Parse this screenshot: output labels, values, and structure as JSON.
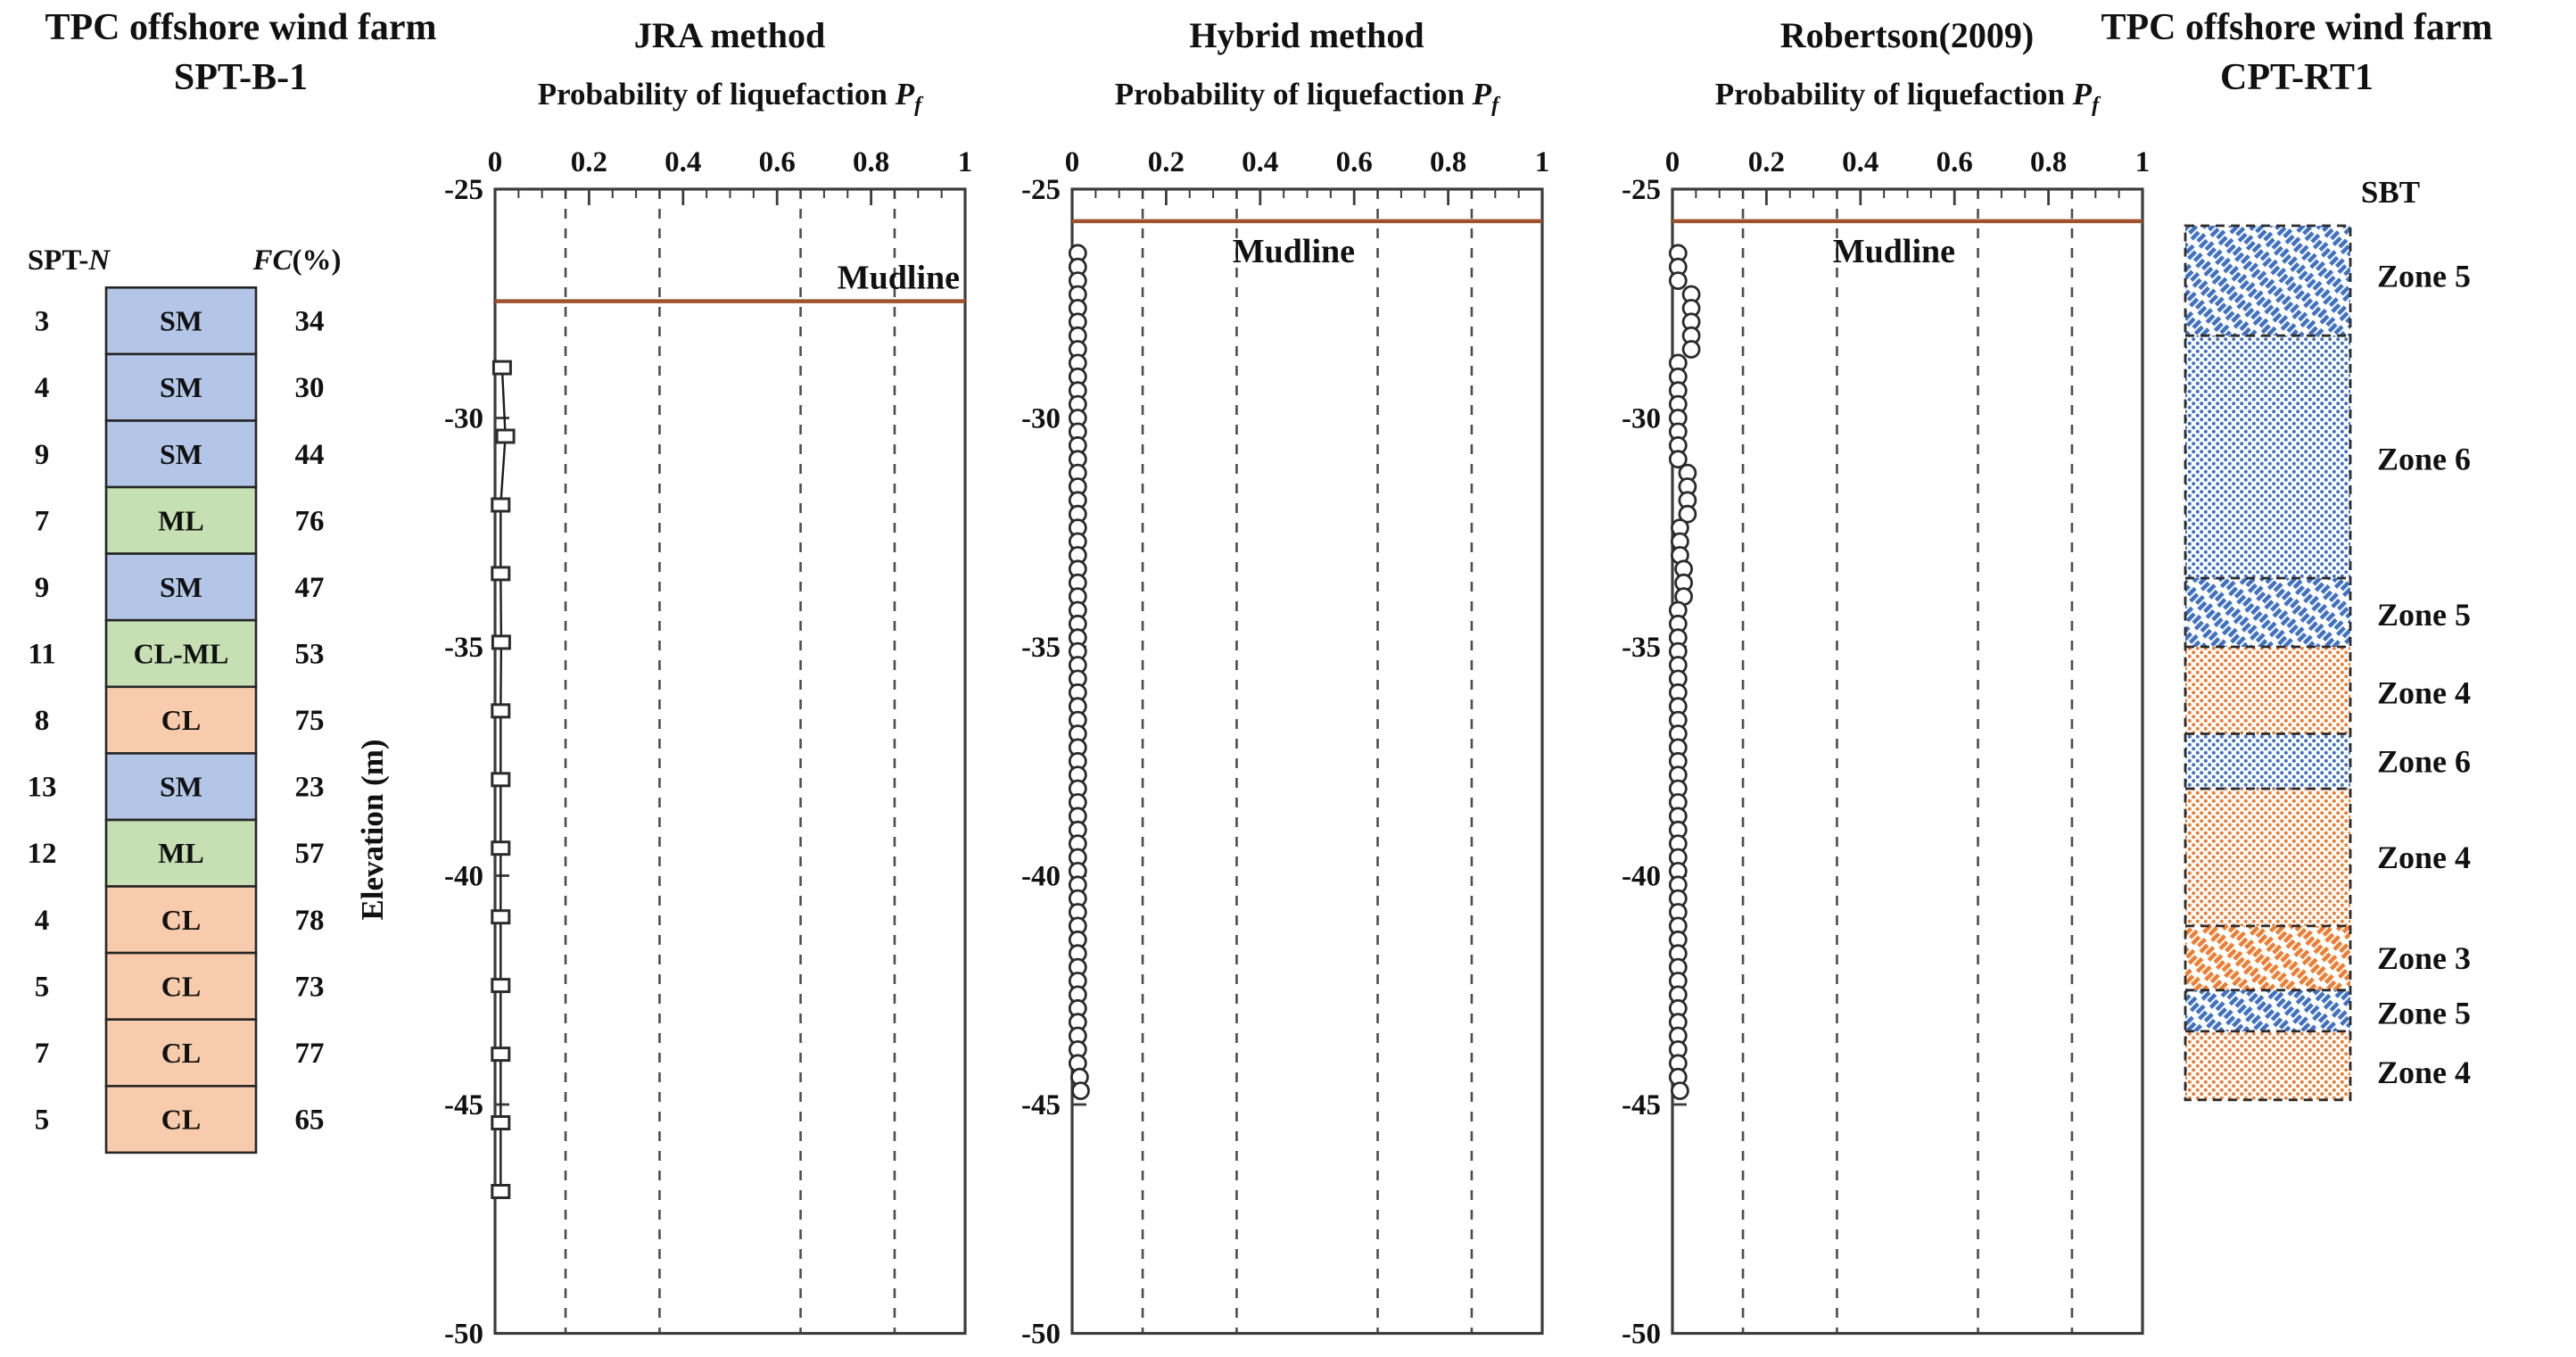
{
  "header": {
    "spt_panel_title_line1": "TPC offshore wind farm",
    "spt_panel_title_line2": "SPT-B-1",
    "cpt_panel_title_line1": "TPC offshore wind farm",
    "cpt_panel_title_line2": "CPT-RT1",
    "sbt_header": "SBT"
  },
  "soil_headers": {
    "spt_prefix": "SPT-",
    "spt_italic": "N",
    "fc_italic": "FC",
    "fc_suffix": "(%)"
  },
  "colors": {
    "sm_fill": "#b4c6e7",
    "ml_fill": "#c6e0b4",
    "cl_fill": "#f8cbad",
    "cell_border": "#262626",
    "mudline": "#a0522d",
    "frame": "#3c3c3c",
    "gridline": "#4d4d4d",
    "marker_stroke": "#2b2b2b",
    "zone_blue": "#4070c0",
    "zone_orange": "#ed7d31",
    "zone_border": "#2b2b2b"
  },
  "chart_data": {
    "type": "multi-panel",
    "description": "Probability of liquefaction vs elevation profiles with SPT soil log and CPT SBT log",
    "elevation_axis": {
      "label": "Elevation (m)",
      "range": [
        -50,
        -25
      ]
    },
    "panels": [
      {
        "id": "jra",
        "panel_type": "line-scatter",
        "title": "JRA method",
        "xlabel_text": "Probability of liquefaction",
        "xlabel_symbol": "P",
        "xlabel_subscript": "f",
        "xlim": [
          0,
          1
        ],
        "ylim": [
          -50,
          -25
        ],
        "xticks": [
          0,
          0.2,
          0.4,
          0.6,
          0.8,
          1
        ],
        "xtick_labels": [
          "0",
          "0.2",
          "0.4",
          "0.6",
          "0.8",
          "1"
        ],
        "yticks": [
          -25,
          -30,
          -35,
          -40,
          -45,
          -50
        ],
        "ytick_labels": [
          "-25",
          "-30",
          "-35",
          "-40",
          "-45",
          "-50"
        ],
        "ylabel": "Elevation (m)",
        "gridlines_pf": [
          0.15,
          0.35,
          0.65,
          0.85
        ],
        "mudline": {
          "elevation": -27.45,
          "label": "Mudline",
          "label_position": "above"
        },
        "marker": "square",
        "points": [
          [
            0.015,
            -28.9
          ],
          [
            0.022,
            -30.4
          ],
          [
            0.012,
            -31.9
          ],
          [
            0.012,
            -33.4
          ],
          [
            0.013,
            -34.9
          ],
          [
            0.012,
            -36.4
          ],
          [
            0.012,
            -37.9
          ],
          [
            0.012,
            -39.4
          ],
          [
            0.012,
            -40.9
          ],
          [
            0.012,
            -42.4
          ],
          [
            0.012,
            -43.9
          ],
          [
            0.012,
            -45.4
          ],
          [
            0.012,
            -46.9
          ]
        ]
      },
      {
        "id": "hybrid",
        "panel_type": "scatter",
        "title": "Hybrid method",
        "xlabel_text": "Probability of liquefaction",
        "xlabel_symbol": "P",
        "xlabel_subscript": "f",
        "xlim": [
          0,
          1
        ],
        "ylim": [
          -50,
          -25
        ],
        "xticks": [
          0,
          0.2,
          0.4,
          0.6,
          0.8,
          1
        ],
        "xtick_labels": [
          "0",
          "0.2",
          "0.4",
          "0.6",
          "0.8",
          "1"
        ],
        "yticks": [
          -25,
          -30,
          -35,
          -40,
          -45,
          -50
        ],
        "ytick_labels": [
          "-25",
          "-30",
          "-35",
          "-40",
          "-45",
          "-50"
        ],
        "gridlines_pf": [
          0.15,
          0.35,
          0.65,
          0.85
        ],
        "mudline": {
          "elevation": -25.7,
          "label": "Mudline",
          "label_position": "below"
        },
        "marker": "circle",
        "points": [
          [
            0.012,
            -26.4
          ],
          [
            0.012,
            -26.7
          ],
          [
            0.012,
            -27.0
          ],
          [
            0.012,
            -27.3
          ],
          [
            0.012,
            -27.6
          ],
          [
            0.012,
            -27.9
          ],
          [
            0.012,
            -28.2
          ],
          [
            0.012,
            -28.5
          ],
          [
            0.012,
            -28.8
          ],
          [
            0.012,
            -29.1
          ],
          [
            0.012,
            -29.4
          ],
          [
            0.012,
            -29.7
          ],
          [
            0.012,
            -30.0
          ],
          [
            0.012,
            -30.3
          ],
          [
            0.012,
            -30.6
          ],
          [
            0.012,
            -30.9
          ],
          [
            0.012,
            -31.2
          ],
          [
            0.012,
            -31.5
          ],
          [
            0.012,
            -31.8
          ],
          [
            0.012,
            -32.1
          ],
          [
            0.012,
            -32.4
          ],
          [
            0.012,
            -32.7
          ],
          [
            0.012,
            -33.0
          ],
          [
            0.012,
            -33.3
          ],
          [
            0.012,
            -33.6
          ],
          [
            0.012,
            -33.9
          ],
          [
            0.012,
            -34.2
          ],
          [
            0.012,
            -34.5
          ],
          [
            0.012,
            -34.8
          ],
          [
            0.012,
            -35.1
          ],
          [
            0.012,
            -35.4
          ],
          [
            0.012,
            -35.7
          ],
          [
            0.012,
            -36.0
          ],
          [
            0.012,
            -36.3
          ],
          [
            0.012,
            -36.6
          ],
          [
            0.012,
            -36.9
          ],
          [
            0.012,
            -37.2
          ],
          [
            0.012,
            -37.5
          ],
          [
            0.012,
            -37.8
          ],
          [
            0.012,
            -38.1
          ],
          [
            0.012,
            -38.4
          ],
          [
            0.012,
            -38.7
          ],
          [
            0.012,
            -39.0
          ],
          [
            0.012,
            -39.3
          ],
          [
            0.012,
            -39.6
          ],
          [
            0.012,
            -39.9
          ],
          [
            0.012,
            -40.2
          ],
          [
            0.012,
            -40.5
          ],
          [
            0.012,
            -40.8
          ],
          [
            0.012,
            -41.1
          ],
          [
            0.012,
            -41.4
          ],
          [
            0.012,
            -41.7
          ],
          [
            0.012,
            -42.0
          ],
          [
            0.012,
            -42.3
          ],
          [
            0.012,
            -42.6
          ],
          [
            0.012,
            -42.9
          ],
          [
            0.012,
            -43.2
          ],
          [
            0.012,
            -43.5
          ],
          [
            0.012,
            -43.8
          ],
          [
            0.012,
            -44.1
          ],
          [
            0.016,
            -44.4
          ],
          [
            0.018,
            -44.7
          ]
        ]
      },
      {
        "id": "robertson",
        "panel_type": "scatter",
        "title": "Robertson(2009)",
        "xlabel_text": "Probability of liquefaction",
        "xlabel_symbol": "P",
        "xlabel_subscript": "f",
        "xlim": [
          0,
          1
        ],
        "ylim": [
          -50,
          -25
        ],
        "xticks": [
          0,
          0.2,
          0.4,
          0.6,
          0.8,
          1
        ],
        "xtick_labels": [
          "0",
          "0.2",
          "0.4",
          "0.6",
          "0.8",
          "1"
        ],
        "yticks": [
          -25,
          -30,
          -35,
          -40,
          -45,
          -50
        ],
        "ytick_labels": [
          "-25",
          "-30",
          "-35",
          "-40",
          "-45",
          "-50"
        ],
        "gridlines_pf": [
          0.15,
          0.35,
          0.65,
          0.85
        ],
        "mudline": {
          "elevation": -25.7,
          "label": "Mudline",
          "label_position": "below"
        },
        "marker": "circle",
        "points": [
          [
            0.012,
            -26.4
          ],
          [
            0.012,
            -26.7
          ],
          [
            0.012,
            -27.0
          ],
          [
            0.04,
            -27.3
          ],
          [
            0.04,
            -27.6
          ],
          [
            0.04,
            -27.9
          ],
          [
            0.04,
            -28.2
          ],
          [
            0.04,
            -28.5
          ],
          [
            0.012,
            -28.8
          ],
          [
            0.012,
            -29.1
          ],
          [
            0.012,
            -29.4
          ],
          [
            0.012,
            -29.7
          ],
          [
            0.012,
            -30.0
          ],
          [
            0.012,
            -30.3
          ],
          [
            0.012,
            -30.6
          ],
          [
            0.012,
            -30.9
          ],
          [
            0.032,
            -31.2
          ],
          [
            0.032,
            -31.5
          ],
          [
            0.032,
            -31.8
          ],
          [
            0.032,
            -32.1
          ],
          [
            0.016,
            -32.4
          ],
          [
            0.016,
            -32.7
          ],
          [
            0.016,
            -33.0
          ],
          [
            0.024,
            -33.3
          ],
          [
            0.024,
            -33.6
          ],
          [
            0.024,
            -33.9
          ],
          [
            0.012,
            -34.2
          ],
          [
            0.012,
            -34.5
          ],
          [
            0.012,
            -34.8
          ],
          [
            0.012,
            -35.1
          ],
          [
            0.012,
            -35.4
          ],
          [
            0.012,
            -35.7
          ],
          [
            0.012,
            -36.0
          ],
          [
            0.012,
            -36.3
          ],
          [
            0.012,
            -36.6
          ],
          [
            0.012,
            -36.9
          ],
          [
            0.012,
            -37.2
          ],
          [
            0.012,
            -37.5
          ],
          [
            0.012,
            -37.8
          ],
          [
            0.012,
            -38.1
          ],
          [
            0.012,
            -38.4
          ],
          [
            0.012,
            -38.7
          ],
          [
            0.012,
            -39.0
          ],
          [
            0.012,
            -39.3
          ],
          [
            0.012,
            -39.6
          ],
          [
            0.012,
            -39.9
          ],
          [
            0.012,
            -40.2
          ],
          [
            0.012,
            -40.5
          ],
          [
            0.012,
            -40.8
          ],
          [
            0.012,
            -41.1
          ],
          [
            0.012,
            -41.4
          ],
          [
            0.012,
            -41.7
          ],
          [
            0.012,
            -42.0
          ],
          [
            0.012,
            -42.3
          ],
          [
            0.012,
            -42.6
          ],
          [
            0.012,
            -42.9
          ],
          [
            0.012,
            -43.2
          ],
          [
            0.012,
            -43.5
          ],
          [
            0.012,
            -43.8
          ],
          [
            0.012,
            -44.1
          ],
          [
            0.012,
            -44.4
          ],
          [
            0.016,
            -44.7
          ]
        ]
      }
    ],
    "soil_log": {
      "column": "SPT-B-1",
      "top_elevation": -27.15,
      "bottom_elevation": -46.05,
      "col_headers": [
        "SPT-N",
        "FC(%)"
      ],
      "rows": [
        {
          "spt_n": "3",
          "soil": "SM",
          "fc": "34",
          "fill": "sm_fill"
        },
        {
          "spt_n": "4",
          "soil": "SM",
          "fc": "30",
          "fill": "sm_fill"
        },
        {
          "spt_n": "9",
          "soil": "SM",
          "fc": "44",
          "fill": "sm_fill"
        },
        {
          "spt_n": "7",
          "soil": "ML",
          "fc": "76",
          "fill": "ml_fill"
        },
        {
          "spt_n": "9",
          "soil": "SM",
          "fc": "47",
          "fill": "sm_fill"
        },
        {
          "spt_n": "11",
          "soil": "CL-ML",
          "fc": "53",
          "fill": "ml_fill"
        },
        {
          "spt_n": "8",
          "soil": "CL",
          "fc": "75",
          "fill": "cl_fill"
        },
        {
          "spt_n": "13",
          "soil": "SM",
          "fc": "23",
          "fill": "sm_fill"
        },
        {
          "spt_n": "12",
          "soil": "ML",
          "fc": "57",
          "fill": "ml_fill"
        },
        {
          "spt_n": "4",
          "soil": "CL",
          "fc": "78",
          "fill": "cl_fill"
        },
        {
          "spt_n": "5",
          "soil": "CL",
          "fc": "73",
          "fill": "cl_fill"
        },
        {
          "spt_n": "7",
          "soil": "CL",
          "fc": "77",
          "fill": "cl_fill"
        },
        {
          "spt_n": "5",
          "soil": "CL",
          "fc": "65",
          "fill": "cl_fill"
        }
      ]
    },
    "sbt_log": {
      "column": "CPT-RT1",
      "top_elevation": -25.8,
      "bottom_elevation": -44.9,
      "zones": [
        {
          "zone": "Zone 5",
          "from": -25.8,
          "to": -28.2,
          "pattern": "hatch-blue"
        },
        {
          "zone": "Zone 6",
          "from": -28.2,
          "to": -33.5,
          "pattern": "dots-blue"
        },
        {
          "zone": "Zone 5",
          "from": -33.5,
          "to": -35.0,
          "pattern": "hatch-blue"
        },
        {
          "zone": "Zone 4",
          "from": -35.0,
          "to": -36.9,
          "pattern": "dots-orange"
        },
        {
          "zone": "Zone 6",
          "from": -36.9,
          "to": -38.1,
          "pattern": "dots-blue"
        },
        {
          "zone": "Zone 4",
          "from": -38.1,
          "to": -41.1,
          "pattern": "dots-orange"
        },
        {
          "zone": "Zone 3",
          "from": -41.1,
          "to": -42.5,
          "pattern": "hatch-orange"
        },
        {
          "zone": "Zone 5",
          "from": -42.5,
          "to": -43.4,
          "pattern": "hatch-blue"
        },
        {
          "zone": "Zone 4",
          "from": -43.4,
          "to": -44.9,
          "pattern": "dots-orange"
        }
      ],
      "labels": [
        {
          "text": "Zone 5",
          "elev": -26.9
        },
        {
          "text": "Zone 6",
          "elev": -30.9
        },
        {
          "text": "Zone 5",
          "elev": -34.3
        },
        {
          "text": "Zone 4",
          "elev": -36.0
        },
        {
          "text": "Zone 6",
          "elev": -37.5
        },
        {
          "text": "Zone 4",
          "elev": -39.6
        },
        {
          "text": "Zone 3",
          "elev": -41.8
        },
        {
          "text": "Zone 5",
          "elev": -43.0
        },
        {
          "text": "Zone 4",
          "elev": -44.3
        }
      ]
    }
  }
}
